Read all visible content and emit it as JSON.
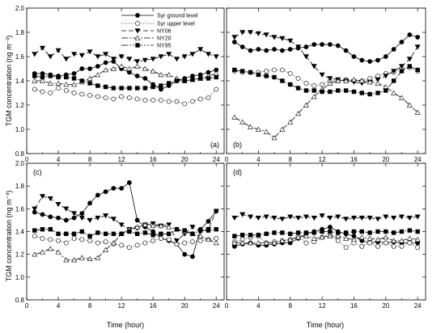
{
  "figure": {
    "ylabel": "TGM concentration (ng m⁻³)",
    "xlabel": "Time (hour)"
  },
  "legend": [
    {
      "name": "Syr ground level",
      "marker": "filled-circle",
      "dash": ""
    },
    {
      "name": "Syr upper level",
      "marker": "open-circle",
      "dash": "1,2"
    },
    {
      "name": "NY06",
      "marker": "filled-triangle-down",
      "dash": "6,3"
    },
    {
      "name": "NY20",
      "marker": "open-triangle-up",
      "dash": "8,2,2,2"
    },
    {
      "name": "NY95",
      "marker": "filled-square",
      "dash": "8,2,2,2,2,2"
    }
  ],
  "chart_data": [
    {
      "panel": "(a)",
      "type": "line",
      "xlim": [
        0,
        25
      ],
      "ylim": [
        0.8,
        2.0
      ],
      "x_ticks": [
        0,
        4,
        8,
        12,
        16,
        20,
        24
      ],
      "y_ticks": [
        0.8,
        1.0,
        1.2,
        1.4,
        1.6,
        1.8,
        2.0
      ],
      "x": [
        1,
        2,
        3,
        4,
        5,
        6,
        7,
        8,
        9,
        10,
        11,
        12,
        13,
        14,
        15,
        16,
        17,
        18,
        19,
        20,
        21,
        22,
        23,
        24
      ],
      "series": [
        {
          "name": "Syr ground level",
          "values": [
            1.46,
            1.46,
            1.45,
            1.44,
            1.45,
            1.46,
            1.5,
            1.5,
            1.52,
            1.55,
            1.56,
            1.5,
            1.47,
            1.44,
            1.42,
            1.37,
            1.33,
            1.36,
            1.4,
            1.42,
            1.44,
            1.45,
            1.47,
            1.49
          ]
        },
        {
          "name": "Syr upper level",
          "values": [
            1.33,
            1.31,
            1.3,
            1.34,
            1.32,
            1.3,
            1.29,
            1.28,
            1.27,
            1.26,
            1.25,
            1.27,
            1.26,
            1.25,
            1.24,
            1.24,
            1.24,
            1.23,
            1.23,
            1.21,
            1.23,
            1.25,
            1.26,
            1.33
          ]
        },
        {
          "name": "NY06",
          "values": [
            1.62,
            1.67,
            1.6,
            1.65,
            1.58,
            1.62,
            1.61,
            1.64,
            1.6,
            1.62,
            1.58,
            1.6,
            1.58,
            1.56,
            1.57,
            1.58,
            1.6,
            1.62,
            1.58,
            1.6,
            1.62,
            1.66,
            1.62,
            1.6
          ]
        },
        {
          "name": "NY20",
          "values": [
            1.4,
            1.4,
            1.38,
            1.38,
            1.37,
            1.37,
            1.39,
            1.42,
            1.45,
            1.49,
            1.5,
            1.52,
            1.5,
            1.52,
            1.5,
            1.48,
            1.45,
            1.45,
            1.42,
            1.4,
            1.41,
            1.42,
            1.44,
            1.46
          ]
        },
        {
          "name": "NY95",
          "values": [
            1.44,
            1.43,
            1.44,
            1.43,
            1.43,
            1.42,
            1.4,
            1.38,
            1.36,
            1.35,
            1.34,
            1.34,
            1.34,
            1.34,
            1.34,
            1.35,
            1.36,
            1.38,
            1.4,
            1.4,
            1.41,
            1.42,
            1.42,
            1.43
          ]
        }
      ]
    },
    {
      "panel": "(b)",
      "type": "line",
      "xlim": [
        0,
        25
      ],
      "ylim": [
        0.8,
        2.0
      ],
      "x_ticks": [
        0,
        4,
        8,
        12,
        16,
        20,
        24
      ],
      "y_ticks": [
        0.8,
        1.0,
        1.2,
        1.4,
        1.6,
        1.8,
        2.0
      ],
      "x": [
        1,
        2,
        3,
        4,
        5,
        6,
        7,
        8,
        9,
        10,
        11,
        12,
        13,
        14,
        15,
        16,
        17,
        18,
        19,
        20,
        21,
        22,
        23,
        24
      ],
      "series": [
        {
          "name": "Syr ground level",
          "values": [
            1.72,
            1.68,
            1.65,
            1.66,
            1.65,
            1.66,
            1.65,
            1.66,
            1.67,
            1.68,
            1.7,
            1.7,
            1.7,
            1.69,
            1.65,
            1.6,
            1.57,
            1.56,
            1.57,
            1.6,
            1.66,
            1.72,
            1.78,
            1.76
          ]
        },
        {
          "name": "Syr upper level",
          "values": [
            1.48,
            1.47,
            1.47,
            1.47,
            1.48,
            1.49,
            1.49,
            1.46,
            1.42,
            1.38,
            1.36,
            1.37,
            1.4,
            1.4,
            1.41,
            1.4,
            1.4,
            1.42,
            1.44,
            1.46,
            1.47,
            1.5,
            1.51,
            1.48
          ]
        },
        {
          "name": "NY06",
          "values": [
            1.76,
            1.8,
            1.8,
            1.79,
            1.78,
            1.76,
            1.75,
            1.73,
            1.68,
            1.6,
            1.52,
            1.45,
            1.42,
            1.41,
            1.4,
            1.39,
            1.38,
            1.39,
            1.41,
            1.44,
            1.48,
            1.52,
            1.58,
            1.68
          ]
        },
        {
          "name": "NY20",
          "values": [
            1.1,
            1.06,
            1.02,
            1.0,
            0.98,
            0.93,
            1.0,
            1.06,
            1.13,
            1.2,
            1.27,
            1.33,
            1.38,
            1.4,
            1.4,
            1.41,
            1.4,
            1.39,
            1.38,
            1.35,
            1.3,
            1.26,
            1.2,
            1.14
          ]
        },
        {
          "name": "NY95",
          "values": [
            1.49,
            1.48,
            1.47,
            1.45,
            1.44,
            1.43,
            1.4,
            1.37,
            1.34,
            1.32,
            1.32,
            1.31,
            1.31,
            1.32,
            1.32,
            1.31,
            1.3,
            1.29,
            1.3,
            1.32,
            1.4,
            1.48,
            1.52,
            1.49
          ]
        }
      ]
    },
    {
      "panel": "(c)",
      "type": "line",
      "xlim": [
        0,
        25
      ],
      "ylim": [
        0.8,
        2.0
      ],
      "x_ticks": [
        0,
        4,
        8,
        12,
        16,
        20,
        24
      ],
      "y_ticks": [
        0.8,
        1.0,
        1.2,
        1.4,
        1.6,
        1.8,
        2.0
      ],
      "x": [
        1,
        2,
        3,
        4,
        5,
        6,
        7,
        8,
        9,
        10,
        11,
        12,
        13,
        14,
        15,
        16,
        17,
        18,
        19,
        20,
        21,
        22,
        23,
        24
      ],
      "series": [
        {
          "name": "Syr ground level",
          "values": [
            1.57,
            1.55,
            1.53,
            1.52,
            1.5,
            1.52,
            1.56,
            1.65,
            1.72,
            1.75,
            1.78,
            1.78,
            1.83,
            1.5,
            1.44,
            1.4,
            1.34,
            1.32,
            1.29,
            1.2,
            1.18,
            1.42,
            1.49,
            1.58
          ]
        },
        {
          "name": "Syr upper level",
          "values": [
            1.36,
            1.34,
            1.33,
            1.32,
            1.3,
            1.34,
            1.33,
            1.32,
            1.3,
            1.31,
            1.29,
            1.28,
            1.26,
            1.28,
            1.3,
            1.32,
            1.34,
            1.33,
            1.29,
            1.3,
            1.31,
            1.32,
            1.33,
            1.34
          ]
        },
        {
          "name": "NY06",
          "values": [
            1.6,
            1.71,
            1.69,
            1.64,
            1.6,
            1.56,
            1.52,
            1.5,
            1.52,
            1.54,
            1.51,
            1.46,
            1.42,
            1.43,
            1.46,
            1.47,
            1.45,
            1.46,
            1.32,
            1.38,
            1.44,
            1.4,
            1.42,
            1.58
          ]
        },
        {
          "name": "NY20",
          "values": [
            1.2,
            1.22,
            1.25,
            1.22,
            1.15,
            1.15,
            1.17,
            1.16,
            1.17,
            1.24,
            1.3,
            1.38,
            1.42,
            1.44,
            1.46,
            1.45,
            1.45,
            1.44,
            1.42,
            1.4,
            1.38,
            1.36,
            1.33,
            1.3
          ]
        },
        {
          "name": "NY95",
          "values": [
            1.41,
            1.42,
            1.42,
            1.38,
            1.38,
            1.38,
            1.4,
            1.36,
            1.39,
            1.38,
            1.38,
            1.38,
            1.4,
            1.38,
            1.39,
            1.37,
            1.38,
            1.38,
            1.42,
            1.41,
            1.38,
            1.41,
            1.41,
            1.42
          ]
        }
      ]
    },
    {
      "panel": "(d)",
      "type": "line",
      "xlim": [
        0,
        25
      ],
      "ylim": [
        0.8,
        2.0
      ],
      "x_ticks": [
        0,
        4,
        8,
        12,
        16,
        20,
        24
      ],
      "y_ticks": [
        0.8,
        1.0,
        1.2,
        1.4,
        1.6,
        1.8,
        2.0
      ],
      "x": [
        1,
        2,
        3,
        4,
        5,
        6,
        7,
        8,
        9,
        10,
        11,
        12,
        13,
        14,
        15,
        16,
        17,
        18,
        19,
        20,
        21,
        22,
        23,
        24
      ],
      "series": [
        {
          "name": "Syr ground level",
          "values": [
            1.27,
            1.29,
            1.3,
            1.28,
            1.28,
            1.29,
            1.3,
            1.3,
            1.34,
            1.38,
            1.4,
            1.42,
            1.44,
            1.4,
            1.38,
            1.36,
            1.32,
            1.3,
            1.31,
            1.3,
            1.31,
            1.3,
            1.3,
            1.3
          ]
        },
        {
          "name": "Syr upper level",
          "values": [
            1.31,
            1.33,
            1.35,
            1.36,
            1.3,
            1.31,
            1.32,
            1.33,
            1.36,
            1.3,
            1.31,
            1.35,
            1.38,
            1.32,
            1.26,
            1.3,
            1.27,
            1.3,
            1.27,
            1.3,
            1.27,
            1.27,
            1.3,
            1.26
          ]
        },
        {
          "name": "NY06",
          "values": [
            1.52,
            1.55,
            1.53,
            1.52,
            1.53,
            1.52,
            1.51,
            1.53,
            1.52,
            1.53,
            1.52,
            1.54,
            1.52,
            1.53,
            1.51,
            1.52,
            1.52,
            1.52,
            1.51,
            1.53,
            1.52,
            1.53,
            1.52,
            1.53
          ]
        },
        {
          "name": "NY20",
          "values": [
            1.3,
            1.3,
            1.3,
            1.3,
            1.3,
            1.3,
            1.32,
            1.33,
            1.35,
            1.36,
            1.34,
            1.35,
            1.36,
            1.36,
            1.34,
            1.33,
            1.35,
            1.34,
            1.33,
            1.35,
            1.32,
            1.32,
            1.34,
            1.33
          ]
        },
        {
          "name": "NY95",
          "values": [
            1.36,
            1.37,
            1.37,
            1.37,
            1.38,
            1.39,
            1.39,
            1.38,
            1.39,
            1.39,
            1.39,
            1.4,
            1.4,
            1.39,
            1.39,
            1.4,
            1.4,
            1.39,
            1.4,
            1.4,
            1.39,
            1.4,
            1.41,
            1.4
          ]
        }
      ]
    }
  ]
}
